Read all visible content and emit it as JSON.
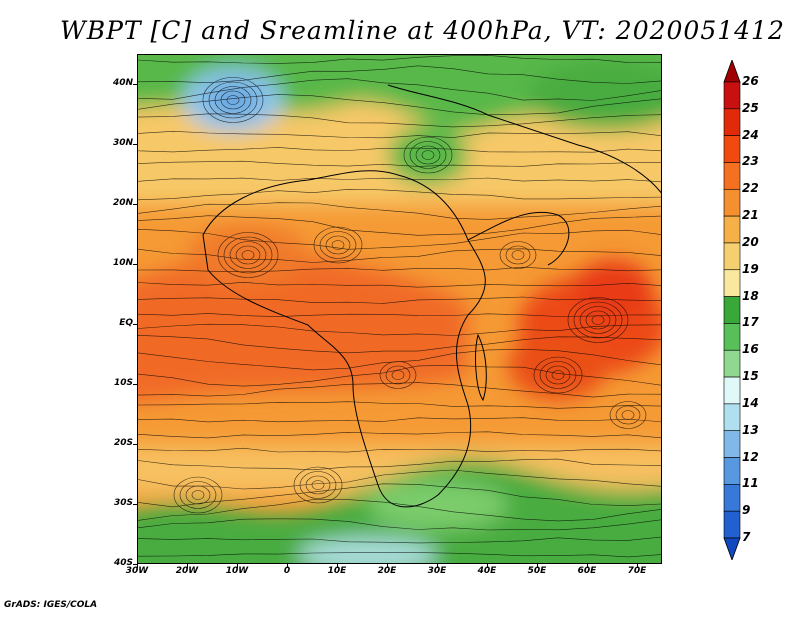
{
  "title": "WBPT [C] and Sreamline at 400hPa, VT: 2020051412",
  "credit": "GrADS: IGES/COLA",
  "map": {
    "lat_labels": [
      "40N",
      "30N",
      "20N",
      "10N",
      "EQ",
      "10S",
      "20S",
      "30S",
      "40S"
    ],
    "lon_labels": [
      "30W",
      "20W",
      "10W",
      "0",
      "10E",
      "20E",
      "30E",
      "40E",
      "50E",
      "60E",
      "70E"
    ],
    "lat_range": [
      -40,
      45
    ],
    "lon_range": [
      -30,
      75
    ]
  },
  "colorbar": {
    "labels": [
      "26",
      "25",
      "24",
      "23",
      "22",
      "21",
      "20",
      "19",
      "18",
      "17",
      "16",
      "15",
      "14",
      "13",
      "12",
      "11",
      "9",
      "7"
    ],
    "colors": [
      "#a00000",
      "#c81010",
      "#e02a0a",
      "#f04a10",
      "#f57020",
      "#f59030",
      "#f5b048",
      "#f5d070",
      "#fae8a0",
      "#38a838",
      "#58c058",
      "#90d890",
      "#e0f8f8",
      "#b0e0f0",
      "#80b8e8",
      "#5898e0",
      "#3878d8",
      "#2060d0",
      "#1048c0"
    ]
  }
}
